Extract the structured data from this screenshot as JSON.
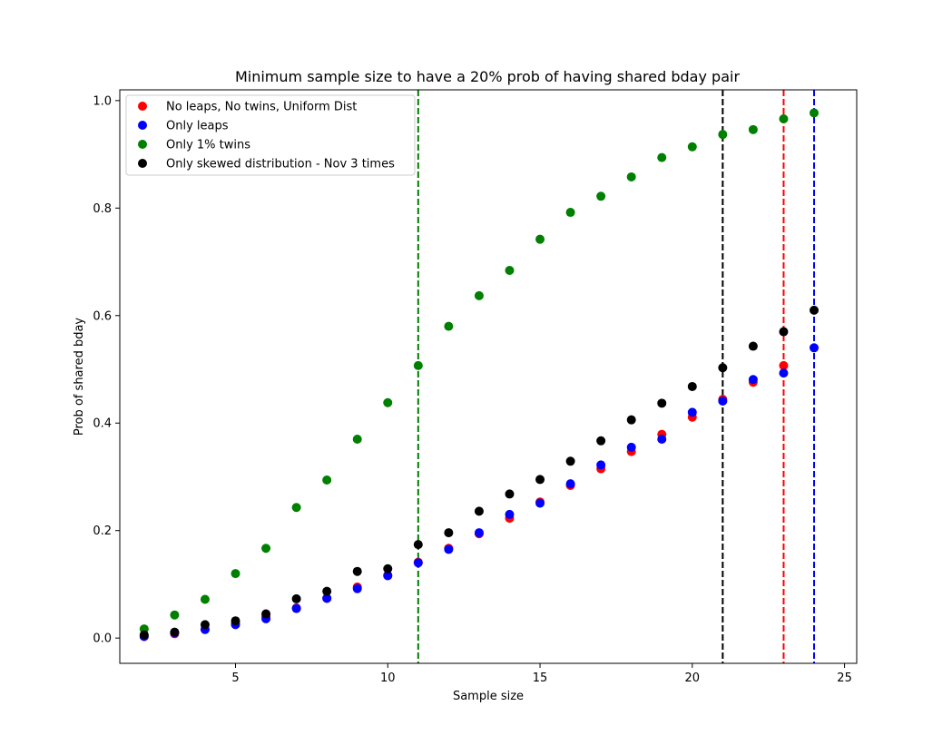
{
  "chart_data": {
    "type": "scatter",
    "title": "Minimum sample size to have a 20% prob of having shared bday pair",
    "xlabel": "Sample size",
    "ylabel": "Prob of shared bday",
    "xlim": [
      1.2,
      25.4
    ],
    "ylim": [
      -0.047,
      1.02
    ],
    "xticks": [
      5,
      10,
      15,
      20,
      25
    ],
    "yticks": [
      0.0,
      0.2,
      0.4,
      0.6,
      0.8,
      1.0
    ],
    "xtick_labels": [
      "5",
      "10",
      "15",
      "20",
      "25"
    ],
    "ytick_labels": [
      "0.0",
      "0.2",
      "0.4",
      "0.6",
      "0.8",
      "1.0"
    ],
    "grid": false,
    "legend_position": "upper-left",
    "x": [
      2,
      3,
      4,
      5,
      6,
      7,
      8,
      9,
      10,
      11,
      12,
      13,
      14,
      15,
      16,
      17,
      18,
      19,
      20,
      21,
      22,
      23,
      24
    ],
    "series": [
      {
        "name": "No leaps, No twins, Uniform Dist",
        "color": "#ff0000",
        "x": [
          2,
          3,
          4,
          5,
          6,
          7,
          8,
          9,
          10,
          11,
          12,
          13,
          14,
          15,
          16,
          17,
          18,
          19,
          20,
          21,
          22,
          23
        ],
        "values": [
          0.003,
          0.008,
          0.016,
          0.027,
          0.04,
          0.056,
          0.074,
          0.095,
          0.117,
          0.141,
          0.167,
          0.194,
          0.223,
          0.253,
          0.284,
          0.315,
          0.347,
          0.379,
          0.411,
          0.444,
          0.476,
          0.507
        ]
      },
      {
        "name": "Only leaps",
        "color": "#0000ff",
        "x": [
          2,
          3,
          4,
          5,
          6,
          7,
          8,
          9,
          10,
          11,
          12,
          13,
          14,
          15,
          16,
          17,
          18,
          19,
          20,
          21,
          22,
          23,
          24
        ],
        "values": [
          0.003,
          0.01,
          0.016,
          0.025,
          0.036,
          0.055,
          0.074,
          0.092,
          0.116,
          0.14,
          0.165,
          0.196,
          0.23,
          0.251,
          0.287,
          0.322,
          0.355,
          0.37,
          0.42,
          0.441,
          0.481,
          0.493,
          0.54
        ]
      },
      {
        "name": "Only 1% twins",
        "color": "#008000",
        "x": [
          2,
          3,
          4,
          5,
          6,
          7,
          8,
          9,
          10,
          11,
          12,
          13,
          14,
          15,
          16,
          17,
          18,
          19,
          20,
          21,
          22,
          23,
          24
        ],
        "values": [
          0.017,
          0.043,
          0.072,
          0.12,
          0.167,
          0.243,
          0.294,
          0.37,
          0.438,
          0.507,
          0.58,
          0.637,
          0.684,
          0.742,
          0.792,
          0.822,
          0.858,
          0.894,
          0.914,
          0.937,
          0.946,
          0.966,
          0.977
        ]
      },
      {
        "name": "Only skewed distribution - Nov 3 times",
        "color": "#000000",
        "x": [
          2,
          3,
          4,
          5,
          6,
          7,
          8,
          9,
          10,
          11,
          12,
          13,
          14,
          15,
          16,
          17,
          18,
          19,
          20,
          21,
          22,
          23,
          24
        ],
        "values": [
          0.006,
          0.011,
          0.025,
          0.032,
          0.045,
          0.073,
          0.087,
          0.124,
          0.129,
          0.174,
          0.196,
          0.236,
          0.268,
          0.295,
          0.329,
          0.367,
          0.406,
          0.437,
          0.468,
          0.503,
          0.543,
          0.57,
          0.61
        ]
      }
    ],
    "vlines": [
      {
        "x": 11,
        "color": "#008000"
      },
      {
        "x": 21,
        "color": "#000000"
      },
      {
        "x": 23,
        "color": "#ff0000"
      },
      {
        "x": 24,
        "color": "#0000ff"
      }
    ]
  }
}
